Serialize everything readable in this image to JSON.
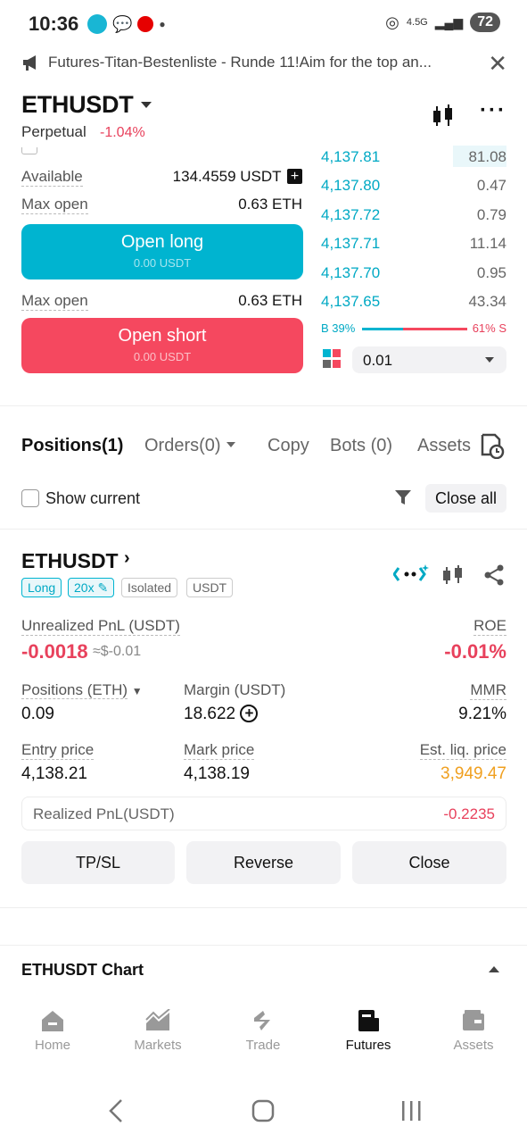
{
  "status": {
    "time": "10:36",
    "network": "4.5G",
    "battery": "72"
  },
  "announcement": {
    "text": "Futures-Titan-Bestenliste - Runde 11!Aim for the top an...",
    "close": "✕"
  },
  "header": {
    "pair": "ETHUSDT",
    "contract": "Perpetual",
    "change": "-1.04%"
  },
  "trade": {
    "available_label": "Available",
    "available_value": "134.4559 USDT",
    "max_open_label": "Max open",
    "max_open_value": "0.63 ETH",
    "long_label": "Open long",
    "long_sub": "0.00 USDT",
    "short_label": "Open short",
    "short_sub": "0.00 USDT"
  },
  "orderbook": {
    "rows": [
      {
        "price": "4,137.81",
        "qty": "81.08"
      },
      {
        "price": "4,137.80",
        "qty": "0.47"
      },
      {
        "price": "4,137.72",
        "qty": "0.79"
      },
      {
        "price": "4,137.71",
        "qty": "11.14"
      },
      {
        "price": "4,137.70",
        "qty": "0.95"
      },
      {
        "price": "4,137.65",
        "qty": "43.34"
      }
    ],
    "buy_ratio": "B 39%",
    "sell_ratio": "61% S",
    "precision": "0.01"
  },
  "tabs": {
    "positions": "Positions(1)",
    "orders": "Orders(0)",
    "copy": "Copy",
    "bots": "Bots (0)",
    "assets": "Assets"
  },
  "filters": {
    "show_current": "Show current",
    "close_all": "Close all"
  },
  "position": {
    "symbol": "ETHUSDT",
    "side": "Long",
    "leverage": "20x",
    "margin_mode": "Isolated",
    "settle": "USDT",
    "upnl_label": "Unrealized PnL (USDT)",
    "upnl_value": "-0.0018",
    "upnl_approx": "≈$-0.01",
    "roe_label": "ROE",
    "roe_value": "-0.01%",
    "size_label": "Positions (ETH)",
    "size_value": "0.09",
    "margin_label": "Margin (USDT)",
    "margin_value": "18.622",
    "mmr_label": "MMR",
    "mmr_value": "9.21%",
    "entry_label": "Entry price",
    "entry_value": "4,138.21",
    "mark_label": "Mark price",
    "mark_value": "4,138.19",
    "liq_label": "Est. liq. price",
    "liq_value": "3,949.47",
    "realized_label": "Realized PnL(USDT)",
    "realized_value": "-0.2235",
    "tpsl": "TP/SL",
    "reverse": "Reverse",
    "close": "Close"
  },
  "chart_section": {
    "title": "ETHUSDT Chart"
  },
  "nav": {
    "home": "Home",
    "markets": "Markets",
    "trade": "Trade",
    "futures": "Futures",
    "assets": "Assets"
  },
  "colors": {
    "accent": "#00b4d0",
    "sell": "#f5485f",
    "liq": "#f0a020"
  }
}
